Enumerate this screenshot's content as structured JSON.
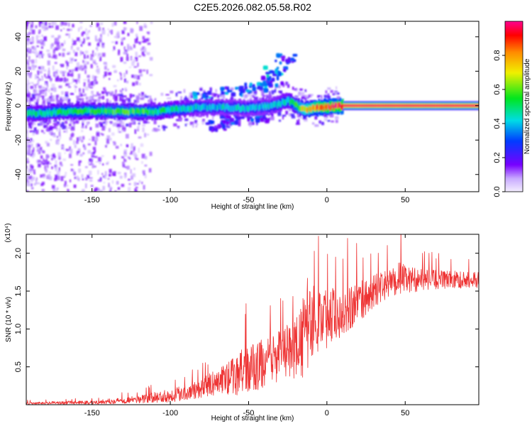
{
  "title": "C2E5.2026.082.05.58.R02",
  "colors": {
    "snr_line": "#ee3333",
    "axis": "#000000",
    "background": "#ffffff"
  },
  "chart_data": [
    {
      "type": "heatmap",
      "name": "spectrogram",
      "xlabel": "Height of straight line (km)",
      "ylabel": "Frequency (Hz)",
      "xlim": [
        -192,
        97
      ],
      "ylim": [
        -50,
        49
      ],
      "xticks": [
        -150,
        -100,
        -50,
        0,
        50
      ],
      "yticks": [
        -40,
        -20,
        0,
        20,
        40
      ],
      "ridge": [
        {
          "x": -185,
          "y": -4.5,
          "amp": 0.45
        },
        {
          "x": -170,
          "y": -3.5,
          "amp": 0.5
        },
        {
          "x": -150,
          "y": -3.0,
          "amp": 0.5
        },
        {
          "x": -130,
          "y": -3.5,
          "amp": 0.55
        },
        {
          "x": -110,
          "y": -3.5,
          "amp": 0.5
        },
        {
          "x": -95,
          "y": -2.0,
          "amp": 0.45
        },
        {
          "x": -80,
          "y": -1.0,
          "amp": 0.4
        },
        {
          "x": -65,
          "y": -1.0,
          "amp": 0.4
        },
        {
          "x": -50,
          "y": -1.5,
          "amp": 0.4
        },
        {
          "x": -35,
          "y": 0.0,
          "amp": 0.4
        },
        {
          "x": -25,
          "y": 3.0,
          "amp": 0.45
        },
        {
          "x": -15,
          "y": -2.5,
          "amp": 0.7
        },
        {
          "x": -5,
          "y": -1.0,
          "amp": 0.85
        },
        {
          "x": 5,
          "y": -0.5,
          "amp": 0.9
        },
        {
          "x": 10,
          "y": 0.0,
          "amp": 0.95
        },
        {
          "x": 97,
          "y": 0.0,
          "amp": 1.0
        }
      ],
      "branches": [
        {
          "x": -80,
          "y": 5,
          "amp": 0.35
        },
        {
          "x": -60,
          "y": 8,
          "amp": 0.35
        },
        {
          "x": -45,
          "y": 10,
          "amp": 0.35
        },
        {
          "x": -35,
          "y": 14,
          "amp": 0.3
        },
        {
          "x": -33,
          "y": 20,
          "amp": 0.4
        },
        {
          "x": -27,
          "y": 27,
          "amp": 0.3
        },
        {
          "x": -60,
          "y": -8,
          "amp": 0.3
        },
        {
          "x": -45,
          "y": -7,
          "amp": 0.3
        },
        {
          "x": -70,
          "y": -12,
          "amp": 0.25
        }
      ],
      "colorbar": {
        "label": "Normalized spectral amplitude",
        "range": [
          0,
          1
        ],
        "ticks": [
          0.0,
          0.2,
          0.4,
          0.6,
          0.8
        ],
        "tick_labels": [
          "0.0",
          "0.2",
          "0.4",
          "0.6",
          "0.8"
        ]
      }
    },
    {
      "type": "line",
      "name": "snr",
      "xlabel": "Height of straight line (km)",
      "ylabel": "SNR (10 * v/v)",
      "scale_label": "(x10⁴)",
      "xlim": [
        -192,
        97
      ],
      "ylim": [
        0,
        22500
      ],
      "xticks": [
        -150,
        -100,
        -50,
        0,
        50
      ],
      "yticks": [
        5000,
        10000,
        15000,
        20000
      ],
      "ytick_labels": [
        "0.5",
        "1.0",
        "1.5",
        "2.0"
      ],
      "envelope": {
        "x": [
          -192,
          -150,
          -120,
          -100,
          -90,
          -80,
          -70,
          -60,
          -55,
          -50,
          -45,
          -40,
          -35,
          -30,
          -25,
          -20,
          -17,
          -15,
          -13,
          -10,
          -5,
          0,
          5,
          10,
          15,
          20,
          25,
          30,
          40,
          45,
          47,
          50,
          60,
          70,
          80,
          90,
          97
        ],
        "mean": [
          200,
          300,
          700,
          1200,
          1700,
          2200,
          3000,
          3800,
          4200,
          4600,
          5000,
          5500,
          6000,
          6500,
          7000,
          7500,
          8000,
          9000,
          10500,
          11000,
          11500,
          11500,
          12000,
          12500,
          13000,
          13500,
          14000,
          15000,
          16000,
          16500,
          17000,
          16500,
          16500,
          16500,
          16500,
          16500,
          16500
        ],
        "noise": [
          150,
          250,
          500,
          900,
          1100,
          1300,
          1700,
          2500,
          3000,
          3300,
          3300,
          3300,
          3300,
          3300,
          3600,
          4000,
          4500,
          6000,
          6500,
          5000,
          4500,
          4000,
          3800,
          3500,
          3200,
          2800,
          2500,
          2200,
          1800,
          2000,
          2500,
          1800,
          1500,
          1300,
          1200,
          1100,
          1100
        ]
      }
    }
  ]
}
